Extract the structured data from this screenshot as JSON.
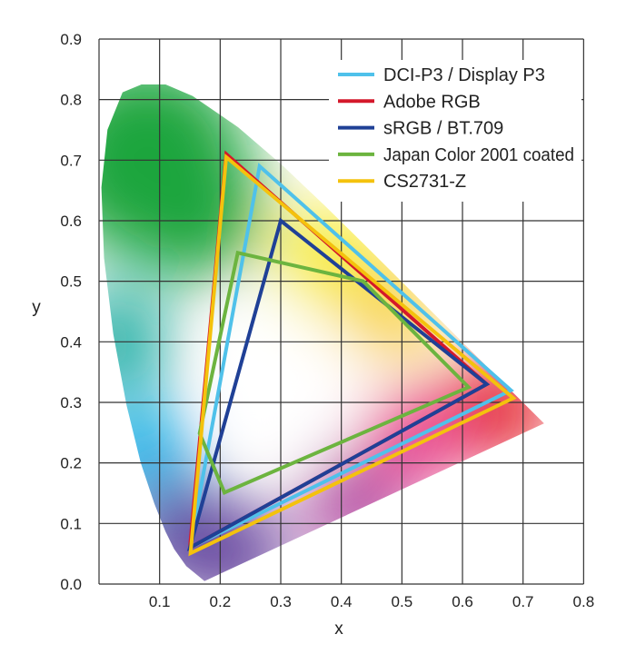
{
  "chart_data": {
    "type": "line",
    "title": "",
    "xlabel": "x",
    "ylabel": "y",
    "xlim": [
      0,
      0.8
    ],
    "ylim": [
      0,
      0.9
    ],
    "grid": true,
    "x_ticks": [
      "0.1",
      "0.2",
      "0.3",
      "0.4",
      "0.5",
      "0.6",
      "0.7",
      "0.8"
    ],
    "y_ticks": [
      "0.0",
      "0.1",
      "0.2",
      "0.3",
      "0.4",
      "0.5",
      "0.6",
      "0.7",
      "0.8",
      "0.9"
    ],
    "legend_position": "top-right",
    "spectral_locus": [
      [
        0.1741,
        0.005
      ],
      [
        0.144,
        0.0297
      ],
      [
        0.1241,
        0.0578
      ],
      [
        0.1096,
        0.0868
      ],
      [
        0.0913,
        0.1327
      ],
      [
        0.0687,
        0.2007
      ],
      [
        0.0454,
        0.295
      ],
      [
        0.0235,
        0.4127
      ],
      [
        0.0082,
        0.5384
      ],
      [
        0.0039,
        0.6548
      ],
      [
        0.0139,
        0.7502
      ],
      [
        0.0389,
        0.812
      ],
      [
        0.07,
        0.825
      ],
      [
        0.11,
        0.825
      ],
      [
        0.1547,
        0.8059
      ],
      [
        0.2296,
        0.7543
      ],
      [
        0.3016,
        0.6923
      ],
      [
        0.3731,
        0.6245
      ],
      [
        0.4441,
        0.5547
      ],
      [
        0.5125,
        0.4866
      ],
      [
        0.5752,
        0.4242
      ],
      [
        0.627,
        0.3725
      ],
      [
        0.6915,
        0.3083
      ],
      [
        0.7347,
        0.2653
      ]
    ],
    "series": [
      {
        "name": "DCI-P3 / Display P3",
        "color": "#4fc1ea",
        "points": [
          [
            0.68,
            0.32
          ],
          [
            0.265,
            0.69
          ],
          [
            0.15,
            0.06
          ]
        ]
      },
      {
        "name": "Adobe RGB",
        "color": "#d4182b",
        "points": [
          [
            0.64,
            0.33
          ],
          [
            0.21,
            0.71
          ],
          [
            0.15,
            0.06
          ]
        ]
      },
      {
        "name": "sRGB / BT.709",
        "color": "#1f4096",
        "points": [
          [
            0.64,
            0.33
          ],
          [
            0.3,
            0.6
          ],
          [
            0.15,
            0.06
          ]
        ]
      },
      {
        "name": "Japan Color 2001 coated",
        "color": "#6cb43f",
        "points": [
          [
            0.229,
            0.547
          ],
          [
            0.436,
            0.5
          ],
          [
            0.61,
            0.325
          ],
          [
            0.207,
            0.151
          ],
          [
            0.166,
            0.249
          ]
        ]
      },
      {
        "name": "CS2731-Z",
        "color": "#f4c20d",
        "points": [
          [
            0.684,
            0.307
          ],
          [
            0.21,
            0.705
          ],
          [
            0.151,
            0.051
          ]
        ]
      }
    ]
  }
}
